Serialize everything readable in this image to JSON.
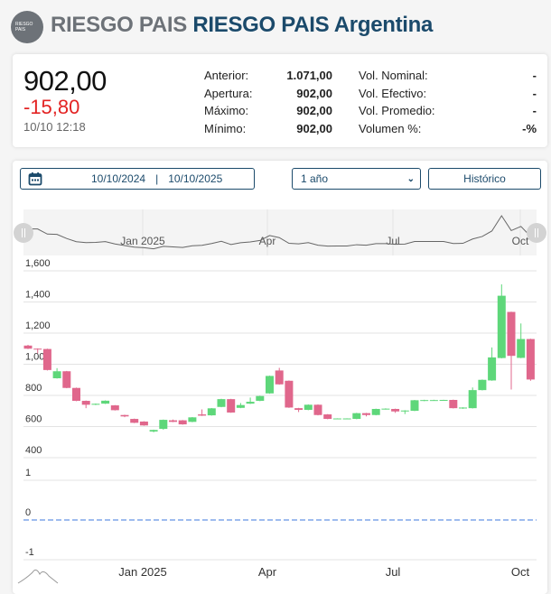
{
  "header": {
    "logo_text": "RIESGO PAIS",
    "title_prefix": "RIESGO PAIS",
    "title_main": "RIESGO PAIS Argentina"
  },
  "quote": {
    "last": "902,00",
    "change": "-15,80",
    "timestamp": "10/10 12:18",
    "stats_left": [
      {
        "label": "Anterior:",
        "value": "1.071,00"
      },
      {
        "label": "Apertura:",
        "value": "902,00"
      },
      {
        "label": "Máximo:",
        "value": "902,00"
      },
      {
        "label": "Mínimo:",
        "value": "902,00"
      }
    ],
    "stats_right": [
      {
        "label": "Vol. Nominal:",
        "value": "-"
      },
      {
        "label": "Vol. Efectivo:",
        "value": "-"
      },
      {
        "label": "Vol. Promedio:",
        "value": "-"
      },
      {
        "label": "Volumen %:",
        "value": "-%"
      }
    ]
  },
  "controls": {
    "date_from": "10/10/2024",
    "date_separator": "|",
    "date_to": "10/10/2025",
    "range_selected": "1 año",
    "historico_label": "Histórico",
    "calendar_icon": "calendar-icon"
  },
  "colors": {
    "up": "#5ed77a",
    "down": "#e0678c",
    "accent": "#1b4a6b",
    "volume_line": "#7ea6e8"
  },
  "chart_data": {
    "type": "candlestick",
    "interval": "weekly",
    "x_start": "2024-10-07",
    "xticks": [
      "Jan 2025",
      "Apr",
      "Jul",
      "Oct"
    ],
    "yticks": [
      "1,600",
      "1,400",
      "1,200",
      "1,000",
      "800",
      "600",
      "400"
    ],
    "ylim": [
      400,
      1600
    ],
    "volume_yticks": [
      "1",
      "0",
      "-1"
    ],
    "volume_ylim": [
      -1,
      1
    ],
    "volume_values": 0,
    "navigator_xticks": [
      "Jan 2025",
      "Apr",
      "Jul",
      "Oct"
    ],
    "grid": true,
    "ohlc": [
      [
        1120,
        1125,
        1098,
        1100
      ],
      [
        1100,
        1102,
        1070,
        1095
      ],
      [
        1098,
        1100,
        960,
        963
      ],
      [
        910,
        975,
        908,
        955
      ],
      [
        955,
        957,
        846,
        848
      ],
      [
        848,
        850,
        763,
        765
      ],
      [
        765,
        767,
        718,
        740
      ],
      [
        740,
        748,
        738,
        746
      ],
      [
        747,
        768,
        745,
        766
      ],
      [
        736,
        738,
        703,
        705
      ],
      [
        674,
        676,
        660,
        665
      ],
      [
        649,
        651,
        622,
        624
      ],
      [
        632,
        634,
        605,
        607
      ],
      [
        568,
        580,
        563,
        578
      ],
      [
        585,
        645,
        580,
        643
      ],
      [
        640,
        645,
        628,
        630
      ],
      [
        640,
        642,
        612,
        614
      ],
      [
        630,
        661,
        628,
        659
      ],
      [
        678,
        710,
        668,
        670
      ],
      [
        672,
        719,
        670,
        717
      ],
      [
        726,
        778,
        724,
        776
      ],
      [
        776,
        778,
        688,
        690
      ],
      [
        720,
        751,
        718,
        738
      ],
      [
        747,
        786,
        745,
        759
      ],
      [
        765,
        798,
        763,
        796
      ],
      [
        813,
        927,
        811,
        925
      ],
      [
        960,
        977,
        869,
        871
      ],
      [
        894,
        896,
        720,
        722
      ],
      [
        718,
        720,
        693,
        707
      ],
      [
        707,
        742,
        705,
        740
      ],
      [
        740,
        742,
        672,
        674
      ],
      [
        678,
        680,
        647,
        649
      ],
      [
        649,
        653,
        647,
        652
      ],
      [
        650,
        653,
        648,
        652
      ],
      [
        649,
        688,
        647,
        686
      ],
      [
        686,
        688,
        665,
        674
      ],
      [
        674,
        715,
        672,
        713
      ],
      [
        711,
        717,
        709,
        715
      ],
      [
        713,
        715,
        688,
        697
      ],
      [
        697,
        705,
        680,
        703
      ],
      [
        701,
        771,
        699,
        769
      ],
      [
        765,
        772,
        763,
        770
      ],
      [
        769,
        772,
        767,
        770
      ],
      [
        769,
        772,
        767,
        771
      ],
      [
        771,
        773,
        716,
        718
      ],
      [
        716,
        724,
        714,
        722
      ],
      [
        718,
        851,
        716,
        834
      ],
      [
        834,
        902,
        832,
        900
      ],
      [
        896,
        1108,
        894,
        1044
      ],
      [
        1040,
        1513,
        1038,
        1440
      ],
      [
        1336,
        1338,
        838,
        1054
      ],
      [
        1041,
        1262,
        1039,
        1162
      ],
      [
        1162,
        1164,
        894,
        902
      ]
    ]
  }
}
